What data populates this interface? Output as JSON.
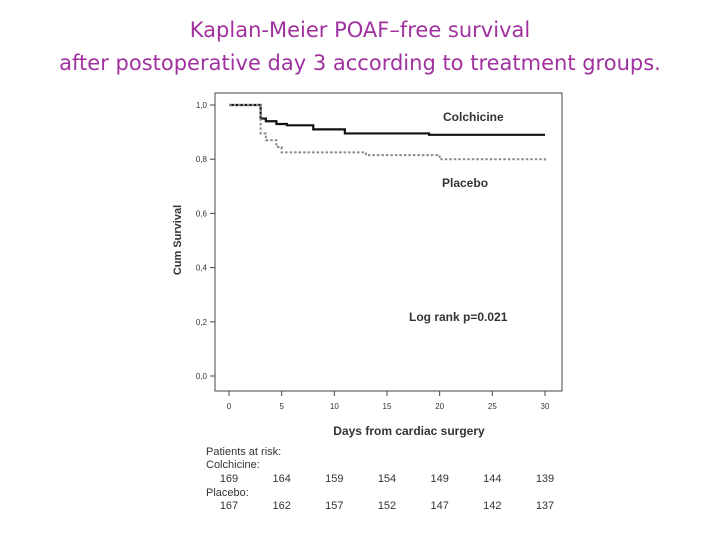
{
  "slide": {
    "title_line1": "Kaplan-Meier POAF–free survival",
    "title_line2": "after postoperative day 3 according to treatment groups.",
    "title_color": "#a0319f"
  },
  "chart_data": {
    "type": "line",
    "subtype": "kaplan-meier-step",
    "title": "",
    "xlabel": "Days from cardiac surgery",
    "ylabel": "Cum Survival",
    "xlim": [
      0,
      30
    ],
    "ylim": [
      0,
      1
    ],
    "x_ticks": [
      0,
      5,
      10,
      15,
      20,
      25,
      30
    ],
    "x_tick_labels": [
      "0",
      "5",
      "10",
      "15",
      "20",
      "25",
      "30"
    ],
    "y_ticks": [
      0,
      0.2,
      0.4,
      0.6,
      0.8,
      1.0
    ],
    "y_tick_labels": [
      "0,0",
      "0,2",
      "0,4",
      "0,6",
      "0,8",
      "1,0"
    ],
    "grid": false,
    "series": [
      {
        "name": "Colchicine",
        "style": "solid",
        "color": "#111111",
        "x": [
          0,
          3,
          3.5,
          4.5,
          5.5,
          8,
          11,
          19,
          30
        ],
        "y": [
          1.0,
          0.95,
          0.94,
          0.93,
          0.925,
          0.91,
          0.895,
          0.89,
          0.89
        ]
      },
      {
        "name": "Placebo",
        "style": "dashed",
        "color": "#8a8a8a",
        "x": [
          0,
          3,
          3.5,
          4.5,
          5,
          13,
          20,
          30
        ],
        "y": [
          1.0,
          0.895,
          0.87,
          0.845,
          0.825,
          0.815,
          0.8,
          0.795
        ]
      }
    ],
    "annotations": [
      {
        "id": "colchicine_label",
        "text": "Colchicine",
        "color": "#333333"
      },
      {
        "id": "placebo_label",
        "text": "Placebo",
        "color": "#8a8a8a"
      },
      {
        "id": "logrank",
        "text": "Log rank p=0.021",
        "color": "#222222"
      }
    ]
  },
  "risk_table": {
    "header_part1": "Patients at",
    "header_part2": "risk:",
    "colchicine_label": "Colchicine:",
    "placebo_label": "Placebo:",
    "colchicine_counts": [
      "169",
      "164",
      "159",
      "154",
      "149",
      "144",
      "139"
    ],
    "placebo_counts": [
      "167",
      "162",
      "157",
      "152",
      "147",
      "142",
      "137"
    ]
  }
}
